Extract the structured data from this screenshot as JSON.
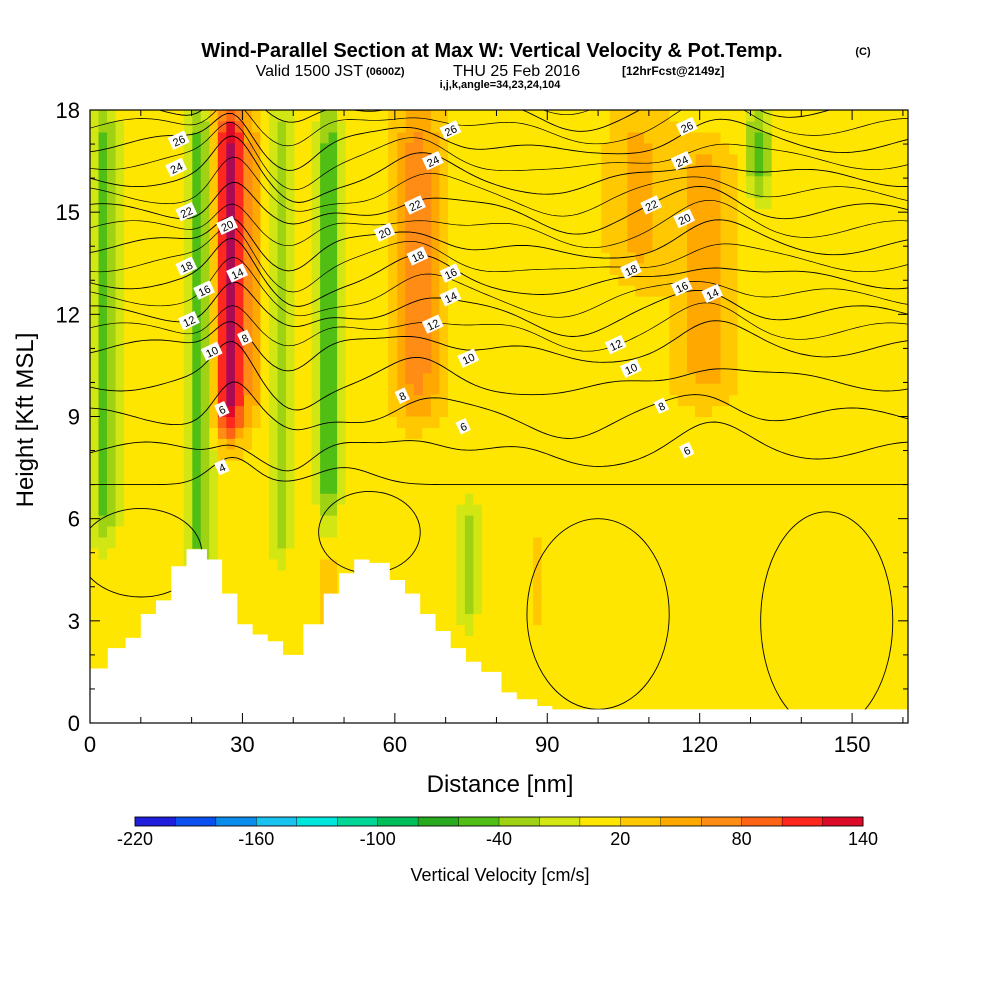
{
  "chart_data": {
    "type": "contour-cross-section",
    "title": "Wind-Parallel Section at Max W: Vertical Velocity & Pot.Temp.",
    "title_unit": "(C)",
    "subtitle": {
      "valid_label": "Valid 1500 JST",
      "utc_label": "(0600Z)",
      "date_label": "THU 25 Feb 2016",
      "forecast_label": "[12hrFcst@2149z]"
    },
    "grid_info": "i,j,k,angle=34,23,24,104",
    "xlabel": "Distance [nm]",
    "ylabel": "Height [Kft MSL]",
    "xlim": [
      0,
      161
    ],
    "ylim": [
      0,
      18
    ],
    "x_ticks": [
      "0",
      "30",
      "60",
      "90",
      "120",
      "150"
    ],
    "y_ticks": [
      "0",
      "3",
      "6",
      "9",
      "12",
      "15",
      "18"
    ],
    "colorbar": {
      "label": "Vertical Velocity [cm/s]",
      "tick_labels": [
        "-220",
        "-160",
        "-100",
        "-40",
        "20",
        "80",
        "140"
      ],
      "min": -220,
      "max": 140,
      "step": 20,
      "colors": [
        "#1e1edc",
        "#0a50f0",
        "#0a8ceb",
        "#19c3f0",
        "#00e6dc",
        "#00d796",
        "#00be5a",
        "#28aa1e",
        "#50be14",
        "#a0d214",
        "#d2e614",
        "#ffe600",
        "#ffc800",
        "#ffa800",
        "#ff8c14",
        "#ff6414",
        "#ff281e",
        "#dc0a28",
        "#aa0a55",
        "#78005a",
        "#50008c"
      ]
    },
    "contour_field": "Potential temperature (C)",
    "contour_values": [
      4,
      6,
      8,
      10,
      12,
      14,
      16,
      18,
      20,
      22,
      24,
      26
    ],
    "contour_labels": [
      {
        "text": "26",
        "x": 17.5,
        "y": 17.1
      },
      {
        "text": "24",
        "x": 17.0,
        "y": 16.3
      },
      {
        "text": "22",
        "x": 19.0,
        "y": 15.0
      },
      {
        "text": "20",
        "x": 27.0,
        "y": 14.6
      },
      {
        "text": "18",
        "x": 19.0,
        "y": 13.4
      },
      {
        "text": "16",
        "x": 22.5,
        "y": 12.7
      },
      {
        "text": "14",
        "x": 29.0,
        "y": 13.2
      },
      {
        "text": "12",
        "x": 19.5,
        "y": 11.8
      },
      {
        "text": "10",
        "x": 24.0,
        "y": 10.9
      },
      {
        "text": "8",
        "x": 30.5,
        "y": 11.3
      },
      {
        "text": "6",
        "x": 26.0,
        "y": 9.2
      },
      {
        "text": "4",
        "x": 26.0,
        "y": 7.5
      },
      {
        "text": "26",
        "x": 71.0,
        "y": 17.4
      },
      {
        "text": "24",
        "x": 67.5,
        "y": 16.5
      },
      {
        "text": "22",
        "x": 64.0,
        "y": 15.2
      },
      {
        "text": "20",
        "x": 58.0,
        "y": 14.4
      },
      {
        "text": "18",
        "x": 64.5,
        "y": 13.7
      },
      {
        "text": "16",
        "x": 71.0,
        "y": 13.2
      },
      {
        "text": "14",
        "x": 71.0,
        "y": 12.5
      },
      {
        "text": "12",
        "x": 67.5,
        "y": 11.7
      },
      {
        "text": "10",
        "x": 74.5,
        "y": 10.7
      },
      {
        "text": "8",
        "x": 61.5,
        "y": 9.6
      },
      {
        "text": "6",
        "x": 73.5,
        "y": 8.7
      },
      {
        "text": "26",
        "x": 117.5,
        "y": 17.5
      },
      {
        "text": "24",
        "x": 116.5,
        "y": 16.5
      },
      {
        "text": "22",
        "x": 110.5,
        "y": 15.2
      },
      {
        "text": "20",
        "x": 117.0,
        "y": 14.8
      },
      {
        "text": "18",
        "x": 106.5,
        "y": 13.3
      },
      {
        "text": "16",
        "x": 116.5,
        "y": 12.8
      },
      {
        "text": "14",
        "x": 122.5,
        "y": 12.6
      },
      {
        "text": "12",
        "x": 103.5,
        "y": 11.1
      },
      {
        "text": "10",
        "x": 106.5,
        "y": 10.4
      },
      {
        "text": "8",
        "x": 112.5,
        "y": 9.3
      },
      {
        "text": "6",
        "x": 117.5,
        "y": 8.0
      }
    ],
    "terrain_profile": {
      "x": [
        0,
        3.5,
        7,
        10,
        13,
        16,
        19,
        23,
        26,
        29,
        32,
        35,
        38,
        42,
        46,
        49,
        52,
        55,
        59,
        62,
        65,
        68,
        71,
        74,
        77,
        81,
        84,
        88,
        91,
        95,
        99,
        103,
        107,
        111,
        115,
        119,
        123,
        127,
        131,
        135,
        139,
        143,
        147,
        151,
        155,
        159,
        161
      ],
      "y": [
        1.6,
        2.2,
        2.5,
        3.2,
        3.6,
        4.6,
        5.1,
        4.8,
        3.8,
        2.9,
        2.6,
        2.4,
        2.0,
        2.9,
        3.8,
        4.4,
        4.8,
        4.7,
        4.2,
        3.8,
        3.2,
        2.7,
        2.2,
        1.8,
        1.5,
        0.9,
        0.7,
        0.5,
        0.4,
        0.4,
        0.4,
        0.4,
        0.4,
        0.4,
        0.4,
        0.4,
        0.4,
        0.4,
        0.4,
        0.4,
        0.4,
        0.4,
        0.4,
        0.4,
        0.4,
        0.4,
        0.4
      ]
    },
    "velocity_features": [
      {
        "type": "updraft",
        "x": 27.5,
        "y_bottom": 8.5,
        "y_top": 18,
        "width": 6,
        "max": 140
      },
      {
        "type": "updraft",
        "x": 32.5,
        "y_bottom": 9.0,
        "y_top": 18,
        "width": 4,
        "max": 30
      },
      {
        "type": "downdraft",
        "x": 21.5,
        "y_bottom": 4.5,
        "y_top": 18,
        "width": 5,
        "max": -60
      },
      {
        "type": "downdraft",
        "x": 3.0,
        "y_bottom": 5.5,
        "y_top": 18,
        "width": 5,
        "max": -60
      },
      {
        "type": "downdraft",
        "x": 37.5,
        "y_bottom": 5.0,
        "y_top": 18,
        "width": 4,
        "max": -45
      },
      {
        "type": "downdraft",
        "x": 47.0,
        "y_bottom": 6.0,
        "y_top": 18,
        "width": 4,
        "max": -65
      },
      {
        "type": "updraft",
        "x": 64.5,
        "y_bottom": 9.0,
        "y_top": 18,
        "width": 9,
        "max": 60
      },
      {
        "type": "updraft",
        "x": 121.0,
        "y_bottom": 9.5,
        "y_top": 17,
        "width": 12,
        "max": 40
      },
      {
        "type": "updraft",
        "x": 108.0,
        "y_bottom": 13.0,
        "y_top": 18,
        "width": 12,
        "max": 35
      },
      {
        "type": "downdraft",
        "x": 131.5,
        "y_bottom": 15.5,
        "y_top": 18,
        "width": 5,
        "max": -60
      },
      {
        "type": "downdraft",
        "x": 74.5,
        "y_bottom": 3.0,
        "y_top": 6.5,
        "width": 4,
        "max": -40
      },
      {
        "type": "updraft",
        "x": 88.5,
        "y_bottom": 3.0,
        "y_top": 5.5,
        "width": 2,
        "max": 30
      },
      {
        "type": "updraft",
        "x": 47.0,
        "y_bottom": 2.0,
        "y_top": 5.0,
        "width": 3,
        "max": 30
      }
    ]
  }
}
